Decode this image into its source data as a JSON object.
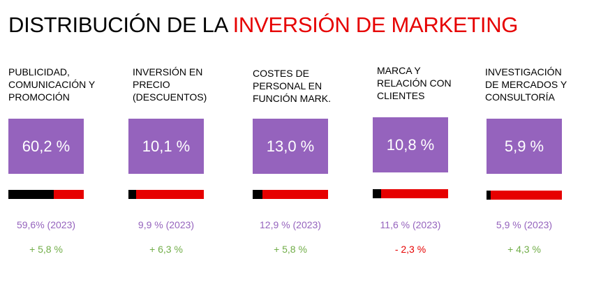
{
  "title": {
    "prefix": "DISTRIBUCIÓN DE LA ",
    "accent": "INVERSIÓN DE MARKETING"
  },
  "colors": {
    "box": "#9563bd",
    "accent": "#e60000",
    "bar_share": "#000000",
    "positive": "#70ad47",
    "negative": "#e60000"
  },
  "categories": [
    {
      "label": "PUBLICIDAD,\nCOMUNICACIÓN Y\nPROMOCIÓN",
      "value": "60,2 %",
      "share": 60.2,
      "prev": "59,6% (2023)",
      "change": "+ 5,8 %",
      "trend": "positive"
    },
    {
      "label": "INVERSIÓN EN\nPRECIO\n(DESCUENTOS)",
      "value": "10,1 %",
      "share": 10.1,
      "prev": "9,9 % (2023)",
      "change": "+ 6,3 %",
      "trend": "positive"
    },
    {
      "label": "COSTES DE\nPERSONAL EN\nFUNCIÓN MARK.",
      "value": "13,0 %",
      "share": 13.0,
      "prev": "12,9 % (2023)",
      "change": "+ 5,8 %",
      "trend": "positive"
    },
    {
      "label": "MARCA Y\nRELACIÓN CON\nCLIENTES",
      "value": "10,8 %",
      "share": 10.8,
      "prev": "11,6 % (2023)",
      "change": "- 2,3 %",
      "trend": "negative"
    },
    {
      "label": "INVESTIGACIÓN\nDE MERCADOS Y\nCONSULTORÍA",
      "value": "5,9 %",
      "share": 5.9,
      "prev": "5,9 % (2023)",
      "change": "+ 4,3 %",
      "trend": "positive"
    }
  ]
}
